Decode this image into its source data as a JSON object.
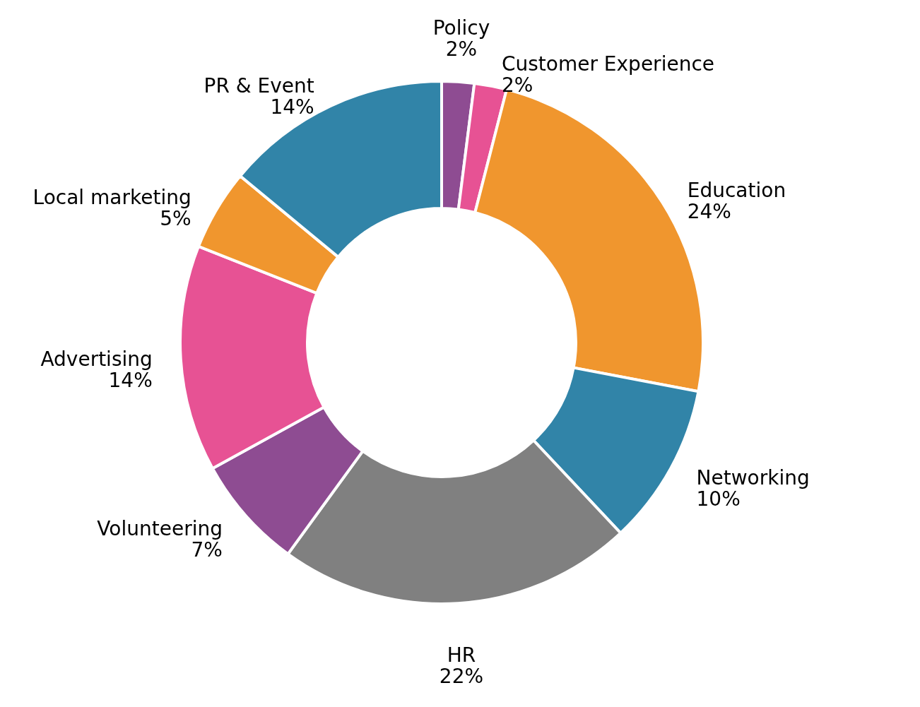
{
  "chart_data": {
    "type": "donut",
    "categories": [
      "Policy",
      "Customer Experience",
      "Education",
      "Networking",
      "HR",
      "Volunteering",
      "Advertising",
      "Local marketing",
      "PR & Event"
    ],
    "values": [
      2,
      2,
      24,
      10,
      22,
      7,
      14,
      5,
      14
    ],
    "value_labels": [
      "2%",
      "2%",
      "24%",
      "10%",
      "22%",
      "7%",
      "14%",
      "5%",
      "14%"
    ],
    "colors": [
      "#8e4c92",
      "#e75294",
      "#f0962e",
      "#3184a8",
      "#808080",
      "#8e4c92",
      "#e75294",
      "#f0962e",
      "#3184a8"
    ]
  }
}
